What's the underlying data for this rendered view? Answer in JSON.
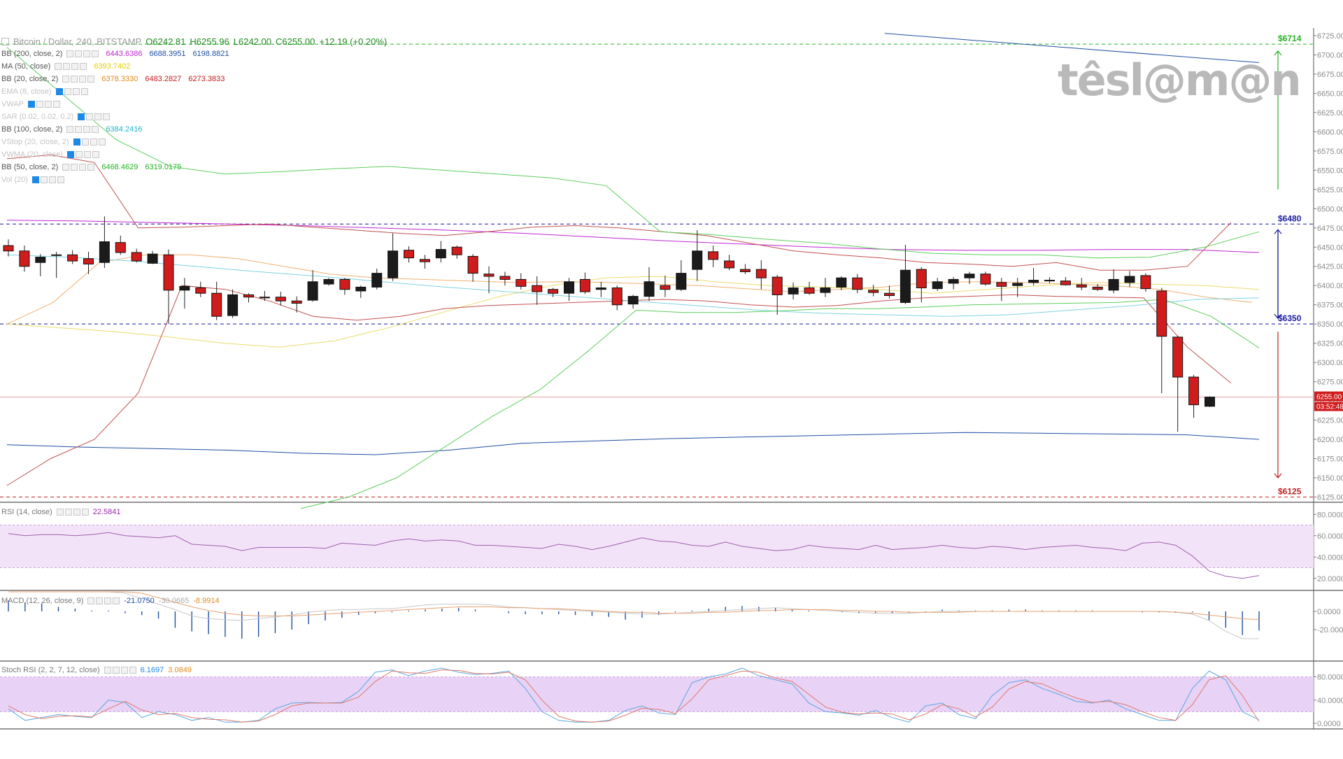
{
  "header": {
    "symbol": "Bitcoin / Dollar, 240, BITSTAMP",
    "open": "O6242.81",
    "high": "H6255.96",
    "low": "L6242.00",
    "close": "C6255.00",
    "change": "+12.19 (+0.20%)"
  },
  "watermark": "têsl@m@n",
  "indicators": [
    {
      "name": "BB (200, close, 2)",
      "values": [
        {
          "v": "6443.6386",
          "c": "#c026d3"
        },
        {
          "v": "6688.3951",
          "c": "#1e4fa3"
        },
        {
          "v": "6198.8821",
          "c": "#1e4fa3"
        }
      ],
      "faint": false
    },
    {
      "name": "MA (50, close)",
      "values": [
        {
          "v": "6393.7402",
          "c": "#e0d000"
        }
      ],
      "faint": false
    },
    {
      "name": "BB (20, close, 2)",
      "values": [
        {
          "v": "6378.3330",
          "c": "#e08a1e"
        },
        {
          "v": "6483.2827",
          "c": "#c21e1e"
        },
        {
          "v": "6273.3833",
          "c": "#c21e1e"
        }
      ],
      "faint": false
    },
    {
      "name": "EMA (8, close)",
      "values": [],
      "faint": true
    },
    {
      "name": "VWAP",
      "values": [],
      "faint": true
    },
    {
      "name": "SAR (0.02, 0.02, 0.2)",
      "values": [],
      "faint": true
    },
    {
      "name": "BB (100, close, 2)",
      "values": [
        {
          "v": "6384.2416",
          "c": "#1fb5c8"
        }
      ],
      "faint": false
    },
    {
      "name": "VStop (20, close, 2)",
      "values": [],
      "faint": true
    },
    {
      "name": "VWMA (20, close)",
      "values": [],
      "faint": true
    },
    {
      "name": "BB (50, close, 2)",
      "values": [
        {
          "v": "6468.4629",
          "c": "#22b322"
        },
        {
          "v": "6319.0175",
          "c": "#22b322"
        }
      ],
      "faint": false
    },
    {
      "name": "Vol (20)",
      "values": [],
      "faint": true
    }
  ],
  "price_tag": {
    "price": "6255.00",
    "timer": "03:52:48"
  },
  "levels": [
    {
      "label": "$6714",
      "price": 6714,
      "color": "#22b322"
    },
    {
      "label": "$6480",
      "price": 6480,
      "color": "#1a1aa0"
    },
    {
      "label": "$6350",
      "price": 6350,
      "color": "#1a1aa0"
    },
    {
      "label": "$6125",
      "price": 6125,
      "color": "#c21e1e"
    }
  ],
  "panes": {
    "rsi": {
      "name": "RSI (14, close)",
      "value": "22.5841",
      "value_color": "#9c27b0",
      "ticks": [
        "80.0000",
        "60.0000",
        "40.0000",
        "20.0000"
      ]
    },
    "macd": {
      "name": "MACD (12, 26, close, 9)",
      "values": [
        {
          "v": "-21.0750",
          "c": "#1e4fa3"
        },
        {
          "v": "-30.0665",
          "c": "#aaaaaa"
        },
        {
          "v": "-8.9914",
          "c": "#e08a1e"
        }
      ],
      "ticks": [
        "0.0000",
        "-20.0000"
      ]
    },
    "stoch": {
      "name": "Stoch RSI (2, 2, 7, 12, close)",
      "values": [
        {
          "v": "6.1697",
          "c": "#1e88e5"
        },
        {
          "v": "3.0849",
          "c": "#e08a1e"
        }
      ],
      "ticks": [
        "80.0000",
        "40.0000",
        "0.0000"
      ]
    }
  },
  "chart_data": {
    "type": "candlestick",
    "title": "Bitcoin / Dollar, 240, BITSTAMP",
    "ylim": [
      6120,
      6735
    ],
    "y_ticks": [
      6125,
      6150,
      6175,
      6200,
      6225,
      6250,
      6275,
      6300,
      6325,
      6350,
      6375,
      6400,
      6425,
      6450,
      6475,
      6500,
      6525,
      6550,
      6575,
      6600,
      6625,
      6650,
      6675,
      6700,
      6725
    ],
    "candles": [
      [
        6452,
        6460,
        6438,
        6445
      ],
      [
        6445,
        6452,
        6418,
        6425
      ],
      [
        6430,
        6441,
        6412,
        6437
      ],
      [
        6440,
        6444,
        6410,
        6440
      ],
      [
        6440,
        6446,
        6428,
        6432
      ],
      [
        6435,
        6444,
        6415,
        6428
      ],
      [
        6430,
        6490,
        6423,
        6457
      ],
      [
        6456,
        6465,
        6440,
        6443
      ],
      [
        6443,
        6448,
        6430,
        6432
      ],
      [
        6429,
        6445,
        6428,
        6441
      ],
      [
        6440,
        6447,
        6350,
        6394
      ],
      [
        6394,
        6410,
        6370,
        6399
      ],
      [
        6397,
        6405,
        6385,
        6390
      ],
      [
        6390,
        6405,
        6355,
        6360
      ],
      [
        6361,
        6395,
        6358,
        6388
      ],
      [
        6388,
        6390,
        6378,
        6385
      ],
      [
        6385,
        6393,
        6380,
        6384
      ],
      [
        6385,
        6392,
        6374,
        6380
      ],
      [
        6380,
        6386,
        6365,
        6377
      ],
      [
        6381,
        6420,
        6379,
        6405
      ],
      [
        6402,
        6410,
        6400,
        6408
      ],
      [
        6408,
        6410,
        6388,
        6395
      ],
      [
        6393,
        6400,
        6384,
        6398
      ],
      [
        6398,
        6422,
        6395,
        6416
      ],
      [
        6410,
        6468,
        6406,
        6445
      ],
      [
        6446,
        6451,
        6430,
        6436
      ],
      [
        6434,
        6440,
        6422,
        6431
      ],
      [
        6436,
        6458,
        6430,
        6447
      ],
      [
        6450,
        6452,
        6435,
        6440
      ],
      [
        6438,
        6441,
        6405,
        6416
      ],
      [
        6415,
        6425,
        6390,
        6412
      ],
      [
        6412,
        6418,
        6400,
        6408
      ],
      [
        6408,
        6416,
        6395,
        6399
      ],
      [
        6400,
        6412,
        6375,
        6392
      ],
      [
        6395,
        6397,
        6385,
        6390
      ],
      [
        6390,
        6410,
        6380,
        6405
      ],
      [
        6408,
        6417,
        6389,
        6392
      ],
      [
        6395,
        6405,
        6385,
        6397
      ],
      [
        6397,
        6400,
        6368,
        6375
      ],
      [
        6376,
        6388,
        6370,
        6386
      ],
      [
        6386,
        6424,
        6380,
        6405
      ],
      [
        6400,
        6413,
        6385,
        6395
      ],
      [
        6395,
        6433,
        6393,
        6416
      ],
      [
        6421,
        6472,
        6406,
        6445
      ],
      [
        6444,
        6452,
        6424,
        6434
      ],
      [
        6432,
        6440,
        6420,
        6423
      ],
      [
        6421,
        6428,
        6415,
        6418
      ],
      [
        6421,
        6433,
        6395,
        6410
      ],
      [
        6411,
        6414,
        6362,
        6388
      ],
      [
        6389,
        6404,
        6382,
        6397
      ],
      [
        6397,
        6405,
        6388,
        6390
      ],
      [
        6391,
        6410,
        6385,
        6397
      ],
      [
        6398,
        6412,
        6394,
        6410
      ],
      [
        6410,
        6415,
        6390,
        6395
      ],
      [
        6394,
        6401,
        6386,
        6391
      ],
      [
        6390,
        6400,
        6383,
        6387
      ],
      [
        6378,
        6453,
        6376,
        6420
      ],
      [
        6421,
        6424,
        6378,
        6397
      ],
      [
        6396,
        6410,
        6393,
        6405
      ],
      [
        6403,
        6411,
        6395,
        6408
      ],
      [
        6410,
        6418,
        6402,
        6415
      ],
      [
        6415,
        6418,
        6400,
        6402
      ],
      [
        6404,
        6410,
        6380,
        6399
      ],
      [
        6400,
        6410,
        6385,
        6403
      ],
      [
        6404,
        6423,
        6400,
        6407
      ],
      [
        6407,
        6411,
        6403,
        6406
      ],
      [
        6406,
        6411,
        6400,
        6401
      ],
      [
        6401,
        6410,
        6394,
        6398
      ],
      [
        6398,
        6402,
        6393,
        6395
      ],
      [
        6394,
        6421,
        6390,
        6408
      ],
      [
        6404,
        6419,
        6398,
        6412
      ],
      [
        6413,
        6416,
        6392,
        6396
      ],
      [
        6393,
        6397,
        6260,
        6334
      ],
      [
        6333,
        6335,
        6210,
        6281
      ],
      [
        6281,
        6284,
        6228,
        6245
      ],
      [
        6243,
        6256,
        6242,
        6255
      ]
    ],
    "series": [
      {
        "name": "BB (200, close, 2)",
        "color": "#c026d3",
        "values": "upper"
      },
      {
        "name": "MA (50, close)",
        "color": "#e0d000"
      },
      {
        "name": "BB (20, close, 2)",
        "color": "#c21e1e"
      },
      {
        "name": "BB (100, close, 2)",
        "color": "#1fb5c8"
      },
      {
        "name": "BB (50, close, 2)",
        "color": "#22b322"
      }
    ],
    "overlays": {
      "bb200_upper_x": [
        0.66,
        1.0
      ],
      "bb200_upper": [
        6728,
        6690
      ],
      "bb200_lower": [
        6193,
        6190,
        6188,
        6186,
        6182,
        6180,
        6186,
        6195,
        6198,
        6201,
        6203,
        6205,
        6207,
        6209,
        6208,
        6207,
        6206,
        6200
      ],
      "bb200_mid": [
        6485,
        6484,
        6482,
        6480,
        6478,
        6475,
        6472,
        6468,
        6463,
        6458,
        6454,
        6450,
        6447,
        6446,
        6446,
        6447,
        6447,
        6443
      ],
      "ma50": [
        6350,
        6345,
        6340,
        6333,
        6325,
        6320,
        6328,
        6345,
        6365,
        6385,
        6400,
        6410,
        6412,
        6405,
        6400,
        6398,
        6395,
        6390,
        6395,
        6400,
        6404,
        6402,
        6400,
        6395
      ],
      "bb20_upper": [
        6565,
        6570,
        6560,
        6475,
        6476,
        6478,
        6480,
        6476,
        6472,
        6468,
        6465,
        6470,
        6476,
        6478,
        6475,
        6470,
        6465,
        6455,
        6445,
        6440,
        6436,
        6430,
        6428,
        6425,
        6430,
        6420,
        6420,
        6425,
        6482
      ],
      "bb20_lower": [
        6140,
        6175,
        6200,
        6260,
        6400,
        6395,
        6380,
        6360,
        6355,
        6360,
        6370,
        6374,
        6376,
        6378,
        6380,
        6382,
        6380,
        6375,
        6372,
        6374,
        6380,
        6384,
        6386,
        6388,
        6386,
        6385,
        6384,
        6320,
        6273
      ],
      "bb20_basis": [
        6350,
        6378,
        6430,
        6440,
        6440,
        6435,
        6425,
        6415,
        6410,
        6408,
        6406,
        6404,
        6405,
        6404,
        6402,
        6400,
        6396,
        6392,
        6395,
        6398,
        6404,
        6405,
        6404,
        6402,
        6400,
        6395,
        6385,
        6378
      ],
      "bb100_mid": [
        6440,
        6437,
        6432,
        6425,
        6418,
        6412,
        6405,
        6398,
        6392,
        6386,
        6380,
        6374,
        6368,
        6364,
        6362,
        6360,
        6362,
        6368,
        6374,
        6382,
        6384
      ],
      "bb50_upper": [
        6710,
        6650,
        6590,
        6555,
        6545,
        6548,
        6552,
        6555,
        6550,
        6545,
        6540,
        6530,
        6470,
        6466,
        6460,
        6455,
        6448,
        6442,
        6440,
        6440,
        6436,
        6437,
        6450,
        6470
      ],
      "bb50_lower": [
        6110,
        6125,
        6150,
        6190,
        6230,
        6265,
        6315,
        6368,
        6365,
        6365,
        6367,
        6370,
        6370,
        6372,
        6375,
        6376,
        6377,
        6378,
        6382,
        6360,
        6319
      ]
    },
    "rsi": [
      62,
      60,
      61,
      61,
      60,
      61,
      63,
      60,
      59,
      58,
      60,
      52,
      51,
      50,
      46,
      49,
      49,
      49,
      49,
      48,
      53,
      52,
      51,
      55,
      57,
      55,
      56,
      55,
      51,
      51,
      50,
      49,
      48,
      52,
      50,
      47,
      50,
      54,
      58,
      55,
      54,
      51,
      50,
      54,
      50,
      48,
      46,
      47,
      51,
      49,
      48,
      47,
      51,
      47,
      48,
      49,
      51,
      49,
      48,
      50,
      49,
      47,
      49,
      50,
      51,
      49,
      48,
      46,
      53,
      54,
      51,
      41,
      27,
      22,
      20,
      22.6
    ],
    "macd_hist": [
      12,
      10,
      9,
      5,
      3,
      1,
      1,
      -2,
      -4,
      -8,
      -18,
      -22,
      -25,
      -28,
      -30,
      -28,
      -24,
      -20,
      -14,
      -10,
      -7,
      -4,
      -2,
      -1,
      1,
      2,
      3,
      4,
      2,
      0,
      -2,
      -3,
      -3,
      -3,
      -4,
      -5,
      -6,
      -9,
      -7,
      -4,
      -1,
      1,
      3,
      5,
      6,
      5,
      4,
      2,
      1,
      0,
      -1,
      -2,
      -2,
      -2,
      -1,
      -1,
      2,
      1,
      1,
      1,
      2,
      2,
      1,
      1,
      1,
      1,
      0,
      0,
      -1,
      -1,
      -1,
      -1,
      -10,
      -18,
      -26,
      -21
    ],
    "macd_line": [
      48,
      45,
      42,
      38,
      34,
      30,
      25,
      20,
      14,
      8,
      2,
      -5,
      -8,
      -9,
      -10,
      -8,
      -6,
      -4,
      -1,
      1,
      2,
      2,
      3,
      3,
      5,
      7,
      8,
      8,
      8,
      7,
      5,
      4,
      3,
      2,
      1,
      0,
      -1,
      -2,
      -3,
      -3,
      -2,
      -1,
      0,
      1,
      2,
      3,
      4,
      3,
      2,
      1,
      0,
      -1,
      -2,
      -2,
      -2,
      -1,
      0,
      0,
      0,
      0,
      0,
      0,
      0,
      0,
      0,
      0,
      0,
      0,
      0,
      0,
      -1,
      -3,
      -10,
      -22,
      -30,
      -30
    ],
    "macd_signal": [
      40,
      39,
      38,
      36,
      34,
      32,
      29,
      25,
      20,
      15,
      10,
      5,
      1,
      -2,
      -4,
      -5,
      -5,
      -5,
      -4,
      -3,
      -2,
      -1,
      0,
      1,
      2,
      3,
      4,
      5,
      5,
      5,
      4,
      4,
      3,
      3,
      2,
      1,
      0,
      -1,
      -1,
      -2,
      -2,
      -2,
      -1,
      -1,
      0,
      1,
      1,
      2,
      2,
      2,
      1,
      1,
      0,
      0,
      -1,
      -1,
      -1,
      -1,
      0,
      0,
      0,
      0,
      0,
      0,
      0,
      0,
      0,
      0,
      0,
      0,
      -1,
      -2,
      -4,
      -6,
      -8,
      -9
    ],
    "stoch_k": [
      25,
      5,
      10,
      15,
      12,
      10,
      40,
      36,
      10,
      20,
      15,
      5,
      10,
      2,
      2,
      5,
      25,
      35,
      36,
      35,
      36,
      55,
      88,
      92,
      82,
      90,
      95,
      88,
      84,
      86,
      90,
      60,
      20,
      5,
      2,
      2,
      5,
      22,
      30,
      18,
      15,
      70,
      80,
      85,
      95,
      82,
      75,
      68,
      35,
      20,
      18,
      14,
      22,
      10,
      2,
      30,
      35,
      15,
      8,
      48,
      70,
      75,
      60,
      50,
      38,
      35,
      40,
      25,
      15,
      5,
      5,
      60,
      90,
      75,
      20,
      6.2
    ],
    "stoch_d": [
      30,
      15,
      8,
      12,
      13,
      11,
      25,
      38,
      23,
      15,
      17,
      10,
      7,
      6,
      2,
      4,
      15,
      30,
      35,
      35,
      35,
      45,
      72,
      90,
      87,
      86,
      92,
      91,
      86,
      85,
      88,
      75,
      40,
      12,
      4,
      2,
      4,
      14,
      26,
      24,
      17,
      42,
      75,
      82,
      90,
      88,
      78,
      72,
      50,
      28,
      19,
      16,
      18,
      16,
      6,
      16,
      32,
      25,
      11,
      28,
      59,
      72,
      68,
      55,
      44,
      36,
      38,
      32,
      20,
      10,
      5,
      32,
      75,
      82,
      48,
      3.1
    ]
  }
}
